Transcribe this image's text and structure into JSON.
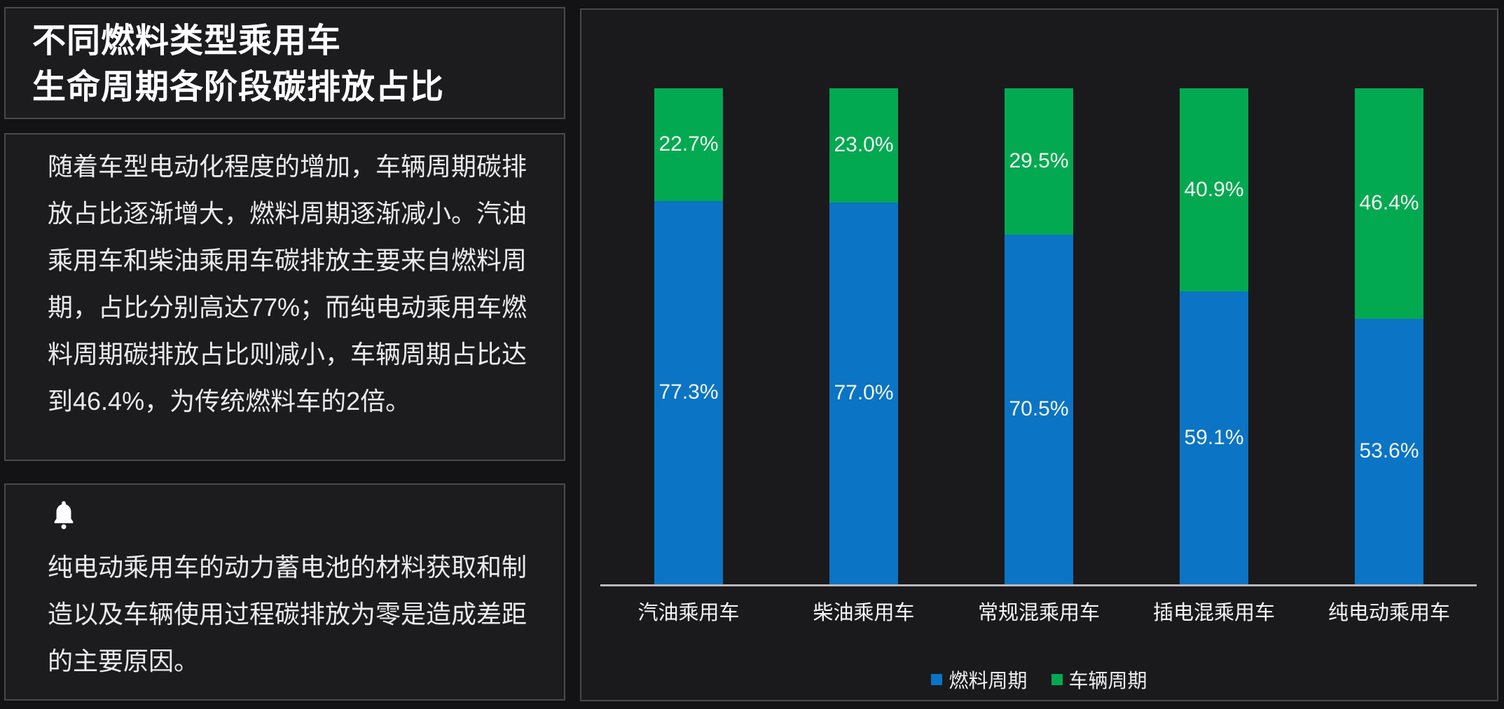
{
  "page": {
    "background": "#131315",
    "panel_background": "#1c1c1f",
    "panel_border_color": "#48484d"
  },
  "left_column": {
    "title_line1": "不同燃料类型乘用车",
    "title_line2": "生命周期各阶段碳排放占比",
    "description": "随着车型电动化程度的增加，车辆周期碳排放占比逐渐增大，燃料周期逐渐减小。汽油乘用车和柴油乘用车碳排放主要来自燃料周期，占比分别高达77%；而纯电动乘用车燃料周期碳排放占比则减小，车辆周期占比达到46.4%，为传统燃料车的2倍。",
    "note": {
      "icon": "bell-icon",
      "text": "纯电动乘用车的动力蓄电池的材料获取和制造以及车辆使用过程碳排放为零是造成差距的主要原因。"
    }
  },
  "chart_data": {
    "type": "bar",
    "variant": "stacked-100",
    "orientation": "vertical",
    "unit": "%",
    "categories": [
      "汽油乘用车",
      "柴油乘用车",
      "常规混乘用车",
      "插电混乘用车",
      "纯电动乘用车"
    ],
    "series": [
      {
        "name": "燃料周期",
        "color": "#0b74c4",
        "position": "bottom",
        "values": [
          77.3,
          77.0,
          70.5,
          59.1,
          53.6
        ]
      },
      {
        "name": "车辆周期",
        "color": "#03a951",
        "position": "top",
        "values": [
          22.7,
          23.0,
          29.5,
          40.9,
          46.4
        ]
      }
    ],
    "value_labels": "centered-on-segment",
    "label_color": "#f2f6f2",
    "ylim": [
      0,
      100
    ],
    "y_axis_visible": false,
    "grid": false,
    "x_axis_line_color": "#b9b9bc",
    "legend_position": "bottom-center"
  }
}
